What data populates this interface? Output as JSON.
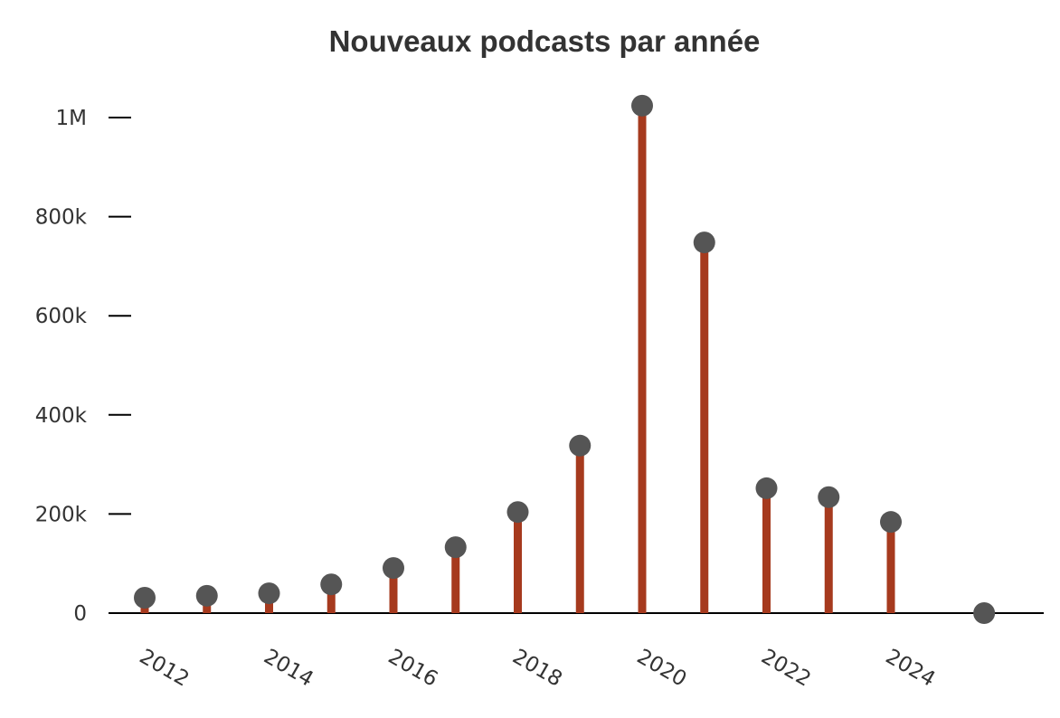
{
  "chart_data": {
    "type": "lollipop",
    "title": "Nouveaux podcasts par année",
    "xlabel": "",
    "ylabel": "",
    "x": [
      2012,
      2013,
      2014,
      2015,
      2016,
      2017,
      2018,
      2019,
      2020,
      2021,
      2022,
      2023,
      2024,
      2025.5
    ],
    "values": [
      31000,
      35000,
      40000,
      58000,
      91000,
      133000,
      204000,
      338000,
      1024000,
      748000,
      252000,
      234000,
      184000,
      0
    ],
    "ylim": [
      0,
      1050000
    ],
    "y_ticks": [
      0,
      200000,
      400000,
      600000,
      800000,
      1000000
    ],
    "y_tick_labels": [
      "0",
      "200k",
      "400k",
      "600k",
      "800k",
      "1M"
    ],
    "x_ticks": [
      2012,
      2014,
      2016,
      2018,
      2020,
      2022,
      2024
    ],
    "x_tick_labels": [
      "2012",
      "2014",
      "2016",
      "2018",
      "2020",
      "2022",
      "2024"
    ],
    "grid": false,
    "legend": null,
    "colors": {
      "stem": "#a63a1e",
      "marker": "#555555",
      "axis": "#000000",
      "text": "#333333"
    }
  },
  "header": {
    "title": "Nouveaux podcasts par année"
  }
}
